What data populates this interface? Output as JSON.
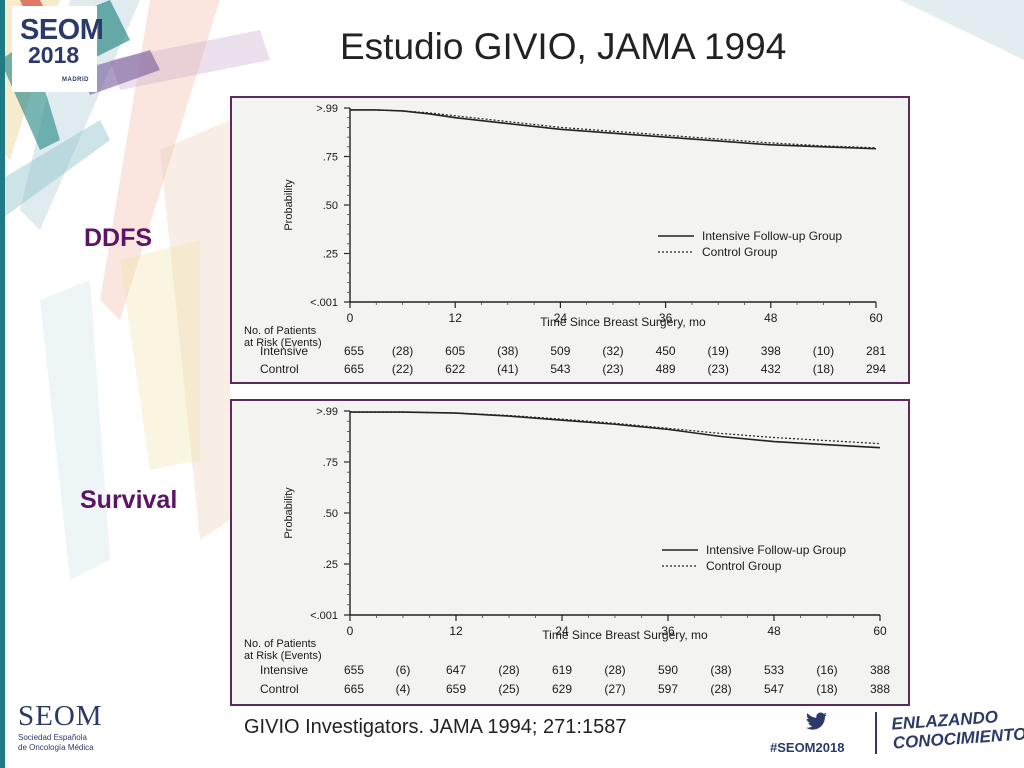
{
  "slide": {
    "title": "Estudio GIVIO, JAMA 1994",
    "labels": {
      "top": "DDFS",
      "bottom": "Survival"
    },
    "reference": "GIVIO Investigators. JAMA 1994; 271:1587",
    "hashtag": "#SEOM2018",
    "tagline": [
      "ENLAZANDO",
      "CONOCIMIENTO"
    ],
    "brand": {
      "logo_word": "SEOM",
      "logo_year": "2018",
      "logo_city": "MADRID",
      "bottom_word": "SEOM",
      "bottom_sub": [
        "Sociedad Española",
        "de Oncología Médica"
      ]
    },
    "colors": {
      "accent": "#5c1466",
      "navy": "#2b3a67",
      "teal": "#1f7a86",
      "panel_border": "#5e2a5e"
    }
  },
  "chart_data": [
    {
      "type": "line",
      "xlabel": "Time Since Breast Surgery, mo",
      "ylabel": "Probability",
      "x_ticks": [
        0,
        12,
        24,
        36,
        48,
        60
      ],
      "y_ticks": [
        ">.99",
        ".75",
        ".50",
        ".25",
        "<.001"
      ],
      "y_tick_values": [
        1.0,
        0.75,
        0.5,
        0.25,
        0.0
      ],
      "xlim": [
        0,
        60
      ],
      "ylim": [
        0,
        1
      ],
      "legend": {
        "position": "right",
        "entries": [
          "Intensive Follow-up Group",
          "Control Group"
        ]
      },
      "series": [
        {
          "name": "Intensive Follow-up Group",
          "style": "solid",
          "x": [
            0,
            3,
            6,
            9,
            12,
            18,
            24,
            30,
            36,
            42,
            48,
            54,
            60
          ],
          "values": [
            0.99,
            0.99,
            0.985,
            0.97,
            0.95,
            0.92,
            0.89,
            0.87,
            0.85,
            0.83,
            0.81,
            0.8,
            0.79
          ]
        },
        {
          "name": "Control Group",
          "style": "dotted",
          "x": [
            0,
            3,
            6,
            9,
            12,
            18,
            24,
            30,
            36,
            42,
            48,
            54,
            60
          ],
          "values": [
            0.99,
            0.99,
            0.985,
            0.975,
            0.96,
            0.93,
            0.9,
            0.88,
            0.86,
            0.84,
            0.82,
            0.805,
            0.795
          ]
        }
      ],
      "risk_table": {
        "header": [
          "No. of Patients",
          "at Risk (Events)"
        ],
        "rows": [
          {
            "label": "Intensive",
            "cells": [
              "655",
              "(28)",
              "605",
              "(38)",
              "509",
              "(32)",
              "450",
              "(19)",
              "398",
              "(10)",
              "281"
            ]
          },
          {
            "label": "Control",
            "cells": [
              "665",
              "(22)",
              "622",
              "(41)",
              "543",
              "(23)",
              "489",
              "(23)",
              "432",
              "(18)",
              "294"
            ]
          }
        ]
      }
    },
    {
      "type": "line",
      "xlabel": "Time Since Breast Surgery, mo",
      "ylabel": "Probability",
      "x_ticks": [
        0,
        12,
        24,
        36,
        48,
        60
      ],
      "y_ticks": [
        ">.99",
        ".75",
        ".50",
        ".25",
        "<.001"
      ],
      "y_tick_values": [
        1.0,
        0.75,
        0.5,
        0.25,
        0.0
      ],
      "xlim": [
        0,
        60
      ],
      "ylim": [
        0,
        1
      ],
      "legend": {
        "position": "right",
        "entries": [
          "Intensive Follow-up Group",
          "Control Group"
        ]
      },
      "series": [
        {
          "name": "Intensive Follow-up Group",
          "style": "solid",
          "x": [
            0,
            6,
            12,
            18,
            24,
            30,
            36,
            42,
            48,
            54,
            60
          ],
          "values": [
            0.995,
            0.995,
            0.99,
            0.975,
            0.955,
            0.935,
            0.91,
            0.875,
            0.85,
            0.835,
            0.82
          ]
        },
        {
          "name": "Control Group",
          "style": "dotted",
          "x": [
            0,
            6,
            12,
            18,
            24,
            30,
            36,
            42,
            48,
            54,
            60
          ],
          "values": [
            0.995,
            0.995,
            0.99,
            0.978,
            0.96,
            0.94,
            0.915,
            0.89,
            0.87,
            0.855,
            0.84
          ]
        }
      ],
      "risk_table": {
        "header": [
          "No. of Patients",
          "at Risk (Events)"
        ],
        "rows": [
          {
            "label": "Intensive",
            "cells": [
              "655",
              "(6)",
              "647",
              "(28)",
              "619",
              "(28)",
              "590",
              "(38)",
              "533",
              "(16)",
              "388"
            ]
          },
          {
            "label": "Control",
            "cells": [
              "665",
              "(4)",
              "659",
              "(25)",
              "629",
              "(27)",
              "597",
              "(28)",
              "547",
              "(18)",
              "388"
            ]
          }
        ]
      }
    }
  ]
}
